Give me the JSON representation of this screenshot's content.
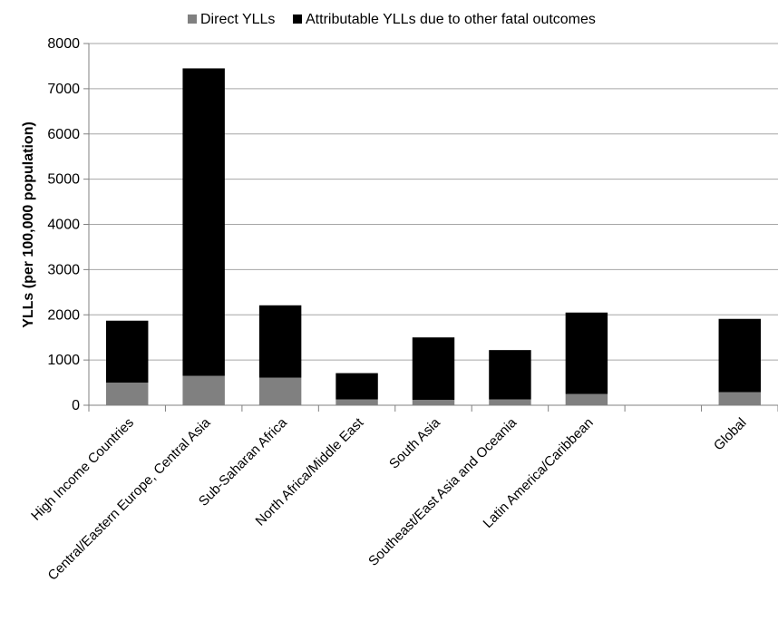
{
  "chart_data": {
    "type": "bar",
    "stacked": true,
    "title": "",
    "xlabel": "",
    "ylabel": "YLLs (per 100,000 population)",
    "ylim": [
      0,
      8000
    ],
    "yticks": [
      0,
      1000,
      2000,
      3000,
      4000,
      5000,
      6000,
      7000,
      8000
    ],
    "grid": true,
    "legend_position": "top",
    "categories": [
      "High Income Countries",
      "Central/Eastern Europe, Central Asia",
      "Sub-Saharan Africa",
      "North Africa/Middle East",
      "South Asia",
      "Southeast/East Asia and Oceania",
      "Latin America/Caribbean",
      "",
      "Global"
    ],
    "series": [
      {
        "name": "Direct YLLs",
        "color": "#808080",
        "values": [
          500,
          650,
          610,
          130,
          120,
          130,
          250,
          null,
          290
        ]
      },
      {
        "name": "Attributable YLLs due to other fatal outcomes",
        "color": "#000000",
        "values": [
          1370,
          6800,
          1600,
          580,
          1380,
          1090,
          1800,
          null,
          1620
        ]
      }
    ]
  }
}
